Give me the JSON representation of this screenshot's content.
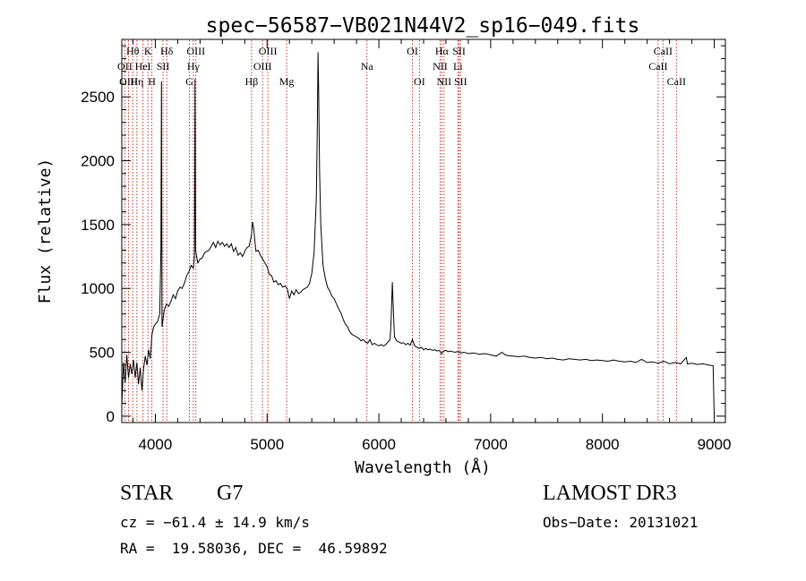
{
  "chart_data": {
    "type": "line",
    "title": "spec−56587−VB021N44V2_sp16−049.fits",
    "xlabel": "Wavelength (Å)",
    "ylabel": "Flux (relative)",
    "xlim": [
      3700,
      9100
    ],
    "ylim": [
      -50,
      2950
    ],
    "x_ticks": [
      4000,
      5000,
      6000,
      7000,
      8000,
      9000
    ],
    "x_tick_labels": [
      "4000",
      "5000",
      "6000",
      "7000",
      "8000",
      "9000"
    ],
    "y_ticks": [
      0,
      500,
      1000,
      1500,
      2000,
      2500
    ],
    "y_tick_labels": [
      "0",
      "500",
      "1000",
      "1500",
      "2000",
      "2500"
    ],
    "series": [
      {
        "name": "spectrum",
        "color": "#000000",
        "points": [
          [
            3700,
            80
          ],
          [
            3715,
            420
          ],
          [
            3730,
            260
          ],
          [
            3745,
            480
          ],
          [
            3760,
            300
          ],
          [
            3775,
            410
          ],
          [
            3790,
            330
          ],
          [
            3805,
            440
          ],
          [
            3820,
            300
          ],
          [
            3835,
            420
          ],
          [
            3850,
            250
          ],
          [
            3865,
            380
          ],
          [
            3880,
            200
          ],
          [
            3895,
            370
          ],
          [
            3910,
            470
          ],
          [
            3925,
            400
          ],
          [
            3940,
            520
          ],
          [
            3955,
            450
          ],
          [
            3970,
            640
          ],
          [
            3985,
            700
          ],
          [
            4000,
            720
          ],
          [
            4020,
            740
          ],
          [
            4040,
            800
          ],
          [
            4050,
            1320
          ],
          [
            4055,
            2620
          ],
          [
            4060,
            700
          ],
          [
            4080,
            830
          ],
          [
            4100,
            880
          ],
          [
            4120,
            860
          ],
          [
            4140,
            900
          ],
          [
            4160,
            950
          ],
          [
            4180,
            920
          ],
          [
            4200,
            980
          ],
          [
            4220,
            1010
          ],
          [
            4240,
            1000
          ],
          [
            4260,
            1040
          ],
          [
            4280,
            1100
          ],
          [
            4300,
            1130
          ],
          [
            4320,
            1180
          ],
          [
            4340,
            1160
          ],
          [
            4350,
            1250
          ],
          [
            4355,
            2640
          ],
          [
            4360,
            1300
          ],
          [
            4380,
            1200
          ],
          [
            4400,
            1230
          ],
          [
            4420,
            1240
          ],
          [
            4440,
            1280
          ],
          [
            4460,
            1290
          ],
          [
            4480,
            1300
          ],
          [
            4500,
            1330
          ],
          [
            4520,
            1360
          ],
          [
            4540,
            1320
          ],
          [
            4560,
            1370
          ],
          [
            4580,
            1340
          ],
          [
            4600,
            1360
          ],
          [
            4620,
            1330
          ],
          [
            4640,
            1350
          ],
          [
            4660,
            1320
          ],
          [
            4680,
            1350
          ],
          [
            4700,
            1290
          ],
          [
            4720,
            1320
          ],
          [
            4740,
            1260
          ],
          [
            4760,
            1280
          ],
          [
            4780,
            1250
          ],
          [
            4800,
            1290
          ],
          [
            4820,
            1320
          ],
          [
            4840,
            1330
          ],
          [
            4860,
            1420
          ],
          [
            4870,
            1520
          ],
          [
            4880,
            1470
          ],
          [
            4890,
            1380
          ],
          [
            4900,
            1290
          ],
          [
            4920,
            1300
          ],
          [
            4940,
            1260
          ],
          [
            4960,
            1230
          ],
          [
            4980,
            1200
          ],
          [
            5000,
            1170
          ],
          [
            5020,
            1110
          ],
          [
            5040,
            1100
          ],
          [
            5060,
            1050
          ],
          [
            5080,
            1060
          ],
          [
            5100,
            1030
          ],
          [
            5120,
            1040
          ],
          [
            5140,
            1010
          ],
          [
            5160,
            1020
          ],
          [
            5180,
            1000
          ],
          [
            5200,
            920
          ],
          [
            5220,
            980
          ],
          [
            5240,
            950
          ],
          [
            5260,
            990
          ],
          [
            5280,
            960
          ],
          [
            5300,
            970
          ],
          [
            5320,
            990
          ],
          [
            5340,
            1000
          ],
          [
            5360,
            1010
          ],
          [
            5380,
            1040
          ],
          [
            5400,
            1120
          ],
          [
            5420,
            1280
          ],
          [
            5440,
            1700
          ],
          [
            5450,
            2300
          ],
          [
            5455,
            2850
          ],
          [
            5460,
            2600
          ],
          [
            5470,
            1900
          ],
          [
            5480,
            1500
          ],
          [
            5500,
            1180
          ],
          [
            5520,
            1080
          ],
          [
            5540,
            1010
          ],
          [
            5560,
            980
          ],
          [
            5580,
            940
          ],
          [
            5600,
            920
          ],
          [
            5620,
            880
          ],
          [
            5640,
            840
          ],
          [
            5660,
            810
          ],
          [
            5680,
            760
          ],
          [
            5700,
            720
          ],
          [
            5720,
            700
          ],
          [
            5740,
            660
          ],
          [
            5760,
            640
          ],
          [
            5780,
            630
          ],
          [
            5800,
            620
          ],
          [
            5820,
            610
          ],
          [
            5840,
            590
          ],
          [
            5860,
            600
          ],
          [
            5880,
            580
          ],
          [
            5900,
            570
          ],
          [
            5920,
            600
          ],
          [
            5940,
            560
          ],
          [
            5960,
            570
          ],
          [
            5980,
            560
          ],
          [
            6000,
            550
          ],
          [
            6020,
            560
          ],
          [
            6040,
            550
          ],
          [
            6060,
            560
          ],
          [
            6080,
            580
          ],
          [
            6100,
            600
          ],
          [
            6110,
            760
          ],
          [
            6120,
            1050
          ],
          [
            6130,
            820
          ],
          [
            6140,
            620
          ],
          [
            6160,
            590
          ],
          [
            6180,
            580
          ],
          [
            6200,
            570
          ],
          [
            6220,
            575
          ],
          [
            6240,
            560
          ],
          [
            6260,
            570
          ],
          [
            6280,
            555
          ],
          [
            6300,
            600
          ],
          [
            6320,
            550
          ],
          [
            6340,
            540
          ],
          [
            6360,
            530
          ],
          [
            6380,
            540
          ],
          [
            6400,
            520
          ],
          [
            6420,
            530
          ],
          [
            6440,
            520
          ],
          [
            6460,
            525
          ],
          [
            6480,
            515
          ],
          [
            6500,
            520
          ],
          [
            6520,
            510
          ],
          [
            6540,
            515
          ],
          [
            6560,
            490
          ],
          [
            6580,
            510
          ],
          [
            6600,
            515
          ],
          [
            6620,
            505
          ],
          [
            6640,
            510
          ],
          [
            6660,
            505
          ],
          [
            6680,
            500
          ],
          [
            6700,
            505
          ],
          [
            6720,
            500
          ],
          [
            6740,
            495
          ],
          [
            6760,
            500
          ],
          [
            6780,
            495
          ],
          [
            6800,
            490
          ],
          [
            6850,
            495
          ],
          [
            6900,
            485
          ],
          [
            6950,
            490
          ],
          [
            7000,
            480
          ],
          [
            7050,
            470
          ],
          [
            7100,
            500
          ],
          [
            7130,
            480
          ],
          [
            7150,
            475
          ],
          [
            7200,
            470
          ],
          [
            7250,
            465
          ],
          [
            7300,
            470
          ],
          [
            7350,
            460
          ],
          [
            7400,
            455
          ],
          [
            7450,
            460
          ],
          [
            7500,
            450
          ],
          [
            7550,
            455
          ],
          [
            7600,
            445
          ],
          [
            7650,
            440
          ],
          [
            7700,
            450
          ],
          [
            7750,
            445
          ],
          [
            7800,
            440
          ],
          [
            7850,
            445
          ],
          [
            7900,
            435
          ],
          [
            7950,
            440
          ],
          [
            8000,
            435
          ],
          [
            8050,
            430
          ],
          [
            8100,
            440
          ],
          [
            8150,
            430
          ],
          [
            8200,
            425
          ],
          [
            8250,
            430
          ],
          [
            8300,
            420
          ],
          [
            8350,
            445
          ],
          [
            8400,
            420
          ],
          [
            8450,
            425
          ],
          [
            8500,
            415
          ],
          [
            8550,
            430
          ],
          [
            8600,
            410
          ],
          [
            8650,
            420
          ],
          [
            8700,
            410
          ],
          [
            8750,
            460
          ],
          [
            8760,
            410
          ],
          [
            8800,
            415
          ],
          [
            8850,
            405
          ],
          [
            8900,
            410
          ],
          [
            8950,
            400
          ],
          [
            8990,
            395
          ],
          [
            9000,
            0
          ]
        ]
      }
    ],
    "line_markers": [
      {
        "label": "Hθ",
        "x": 3798,
        "row": 1
      },
      {
        "label": "OII",
        "x": 3727,
        "row": 2
      },
      {
        "label": "OIII",
        "x": 3760,
        "row": 3
      },
      {
        "label": "HeI",
        "x": 3889,
        "row": 2
      },
      {
        "label": "Hη",
        "x": 3835,
        "row": 3
      },
      {
        "label": "K",
        "x": 3934,
        "row": 1
      },
      {
        "label": "SII",
        "x": 4069,
        "row": 2
      },
      {
        "label": "H",
        "x": 3969,
        "row": 3
      },
      {
        "label": "Hδ",
        "x": 4102,
        "row": 1
      },
      {
        "label": "OIII",
        "x": 4363,
        "row": 1
      },
      {
        "label": "Hγ",
        "x": 4340,
        "row": 2
      },
      {
        "label": "G",
        "x": 4305,
        "row": 3
      },
      {
        "label": "OIII",
        "x": 5007,
        "row": 1
      },
      {
        "label": "OIII",
        "x": 4959,
        "row": 2
      },
      {
        "label": "Hβ",
        "x": 4861,
        "row": 3
      },
      {
        "label": "Mg",
        "x": 5175,
        "row": 3
      },
      {
        "label": "Na",
        "x": 5893,
        "row": 2
      },
      {
        "label": "OI",
        "x": 6300,
        "row": 1
      },
      {
        "label": "OI",
        "x": 6363,
        "row": 3
      },
      {
        "label": "Hα",
        "x": 6563,
        "row": 1
      },
      {
        "label": "NII",
        "x": 6548,
        "row": 2
      },
      {
        "label": "NII",
        "x": 6583,
        "row": 3
      },
      {
        "label": "SII",
        "x": 6717,
        "row": 1
      },
      {
        "label": "Li",
        "x": 6707,
        "row": 2
      },
      {
        "label": "SII",
        "x": 6731,
        "row": 3
      },
      {
        "label": "CaII",
        "x": 8542,
        "row": 1
      },
      {
        "label": "CaII",
        "x": 8498,
        "row": 2
      },
      {
        "label": "CaII",
        "x": 8662,
        "row": 3
      }
    ]
  },
  "info": {
    "object_class": "STAR",
    "subclass": "G7",
    "redshift": "cz = −61.4 ± 14.9 km/s",
    "coords": "RA =  19.58036, DEC =  46.59892",
    "survey": "LAMOST DR3",
    "obs_date": "Obs−Date: 20131021"
  },
  "colors": {
    "spectrum": "#000000",
    "marker": "#c0392b",
    "axes": "#000000"
  }
}
